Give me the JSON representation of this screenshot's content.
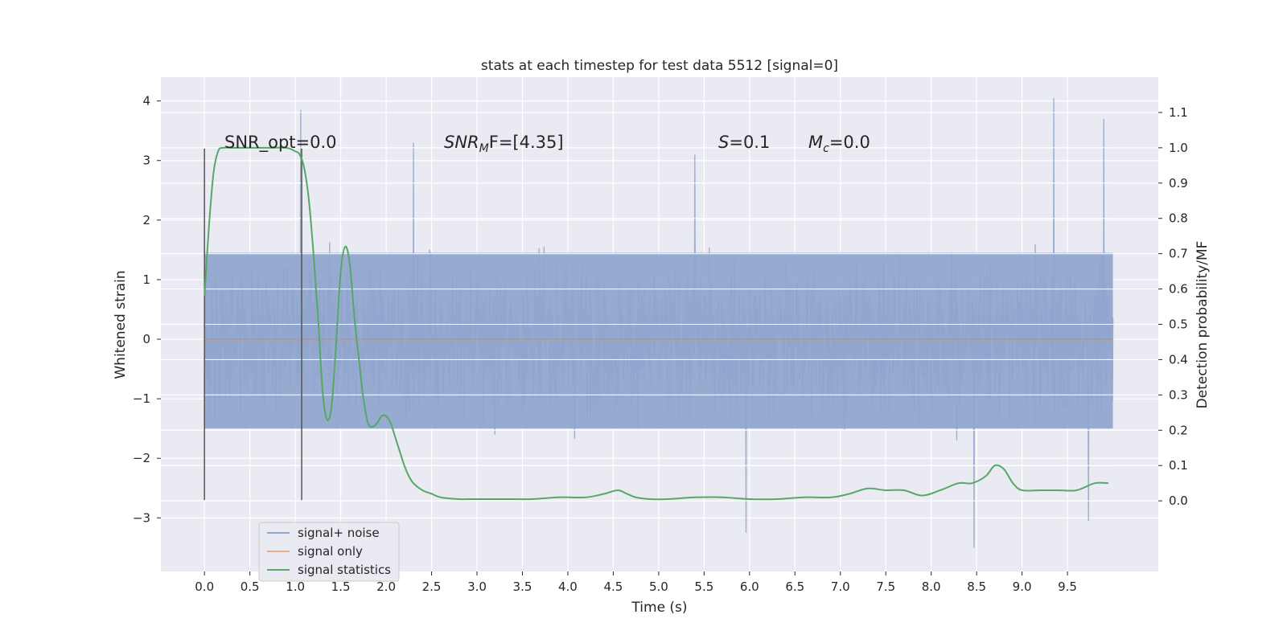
{
  "chart_data": {
    "type": "line",
    "title": "stats at each timestep for test data 5512 [signal=0]",
    "xlabel": "Time (s)",
    "ylabel_left": "Whitened strain",
    "ylabel_right": "Detection probability/MF",
    "xlim": [
      -0.48,
      10.5
    ],
    "ylim_left": [
      -3.9,
      4.4
    ],
    "ylim_right": [
      -0.2,
      1.2
    ],
    "x_ticks": [
      "0.0",
      "0.5",
      "1.0",
      "1.5",
      "2.0",
      "2.5",
      "3.0",
      "3.5",
      "4.0",
      "4.5",
      "5.0",
      "5.5",
      "6.0",
      "6.5",
      "7.0",
      "7.5",
      "8.0",
      "8.5",
      "9.0",
      "9.5"
    ],
    "y_ticks_left": [
      "4",
      "3",
      "2",
      "1",
      "0",
      "−1",
      "−2",
      "−3"
    ],
    "y_ticks_right": [
      "1.1",
      "1.0",
      "0.9",
      "0.8",
      "0.7",
      "0.6",
      "0.5",
      "0.4",
      "0.3",
      "0.2",
      "0.1",
      "0.0"
    ],
    "grid": true,
    "legend_position": "lower-left",
    "annotations": {
      "snr_opt": "SNR_opt=0.0",
      "snr_mf_main": "SNR",
      "snr_mf_sub": "M",
      "snr_mf_tail": "F=[4.35]",
      "s_main": "S",
      "s_tail": "=0.1",
      "mc_main": "M",
      "mc_sub": "c",
      "mc_tail": "=0.0"
    },
    "vertical_markers_x": [
      0.0,
      1.07
    ],
    "series": [
      {
        "name": "signal+ noise",
        "color": "#8fa5cd",
        "description_range": [
          -3.5,
          4.05
        ],
        "x_range": [
          0.0,
          10.0
        ],
        "envelope_typical": [
          -1.5,
          1.45
        ],
        "notable_peaks": [
          {
            "x": 1.06,
            "y": 3.85
          },
          {
            "x": 9.35,
            "y": 4.05
          },
          {
            "x": 2.3,
            "y": 3.3
          },
          {
            "x": 9.9,
            "y": 3.7
          },
          {
            "x": 5.4,
            "y": 3.1
          },
          {
            "x": 8.47,
            "y": -3.5
          },
          {
            "x": 5.96,
            "y": -3.25
          },
          {
            "x": 9.73,
            "y": -3.05
          }
        ]
      },
      {
        "name": "signal only",
        "color": "#dd8452",
        "x": [
          0.0,
          10.0
        ],
        "values": [
          0.0,
          0.0
        ]
      },
      {
        "name": "signal statistics",
        "color": "#55a868",
        "axis": "right",
        "x": [
          0.0,
          0.05,
          0.1,
          0.15,
          0.2,
          0.3,
          0.5,
          0.7,
          0.9,
          1.0,
          1.05,
          1.1,
          1.15,
          1.2,
          1.25,
          1.3,
          1.35,
          1.4,
          1.45,
          1.5,
          1.55,
          1.6,
          1.65,
          1.7,
          1.75,
          1.8,
          1.85,
          1.9,
          1.95,
          2.0,
          2.05,
          2.1,
          2.15,
          2.2,
          2.25,
          2.3,
          2.4,
          2.5,
          2.6,
          2.8,
          3.0,
          3.3,
          3.6,
          3.9,
          4.2,
          4.4,
          4.55,
          4.65,
          4.75,
          4.9,
          5.1,
          5.4,
          5.7,
          6.0,
          6.3,
          6.6,
          6.9,
          7.1,
          7.3,
          7.5,
          7.7,
          7.9,
          8.1,
          8.3,
          8.45,
          8.6,
          8.7,
          8.8,
          8.9,
          9.0,
          9.2,
          9.4,
          9.6,
          9.8,
          9.95
        ],
        "values": [
          0.58,
          0.78,
          0.93,
          0.99,
          1.0,
          1.0,
          1.0,
          1.0,
          1.0,
          0.99,
          0.98,
          0.94,
          0.85,
          0.7,
          0.52,
          0.31,
          0.23,
          0.27,
          0.45,
          0.65,
          0.72,
          0.67,
          0.52,
          0.4,
          0.29,
          0.22,
          0.21,
          0.22,
          0.24,
          0.24,
          0.22,
          0.18,
          0.14,
          0.1,
          0.07,
          0.05,
          0.03,
          0.02,
          0.01,
          0.005,
          0.005,
          0.005,
          0.005,
          0.01,
          0.01,
          0.02,
          0.03,
          0.02,
          0.01,
          0.005,
          0.005,
          0.01,
          0.01,
          0.005,
          0.005,
          0.01,
          0.01,
          0.02,
          0.035,
          0.03,
          0.03,
          0.015,
          0.03,
          0.05,
          0.05,
          0.07,
          0.1,
          0.09,
          0.05,
          0.03,
          0.03,
          0.03,
          0.03,
          0.05,
          0.05
        ]
      }
    ]
  }
}
